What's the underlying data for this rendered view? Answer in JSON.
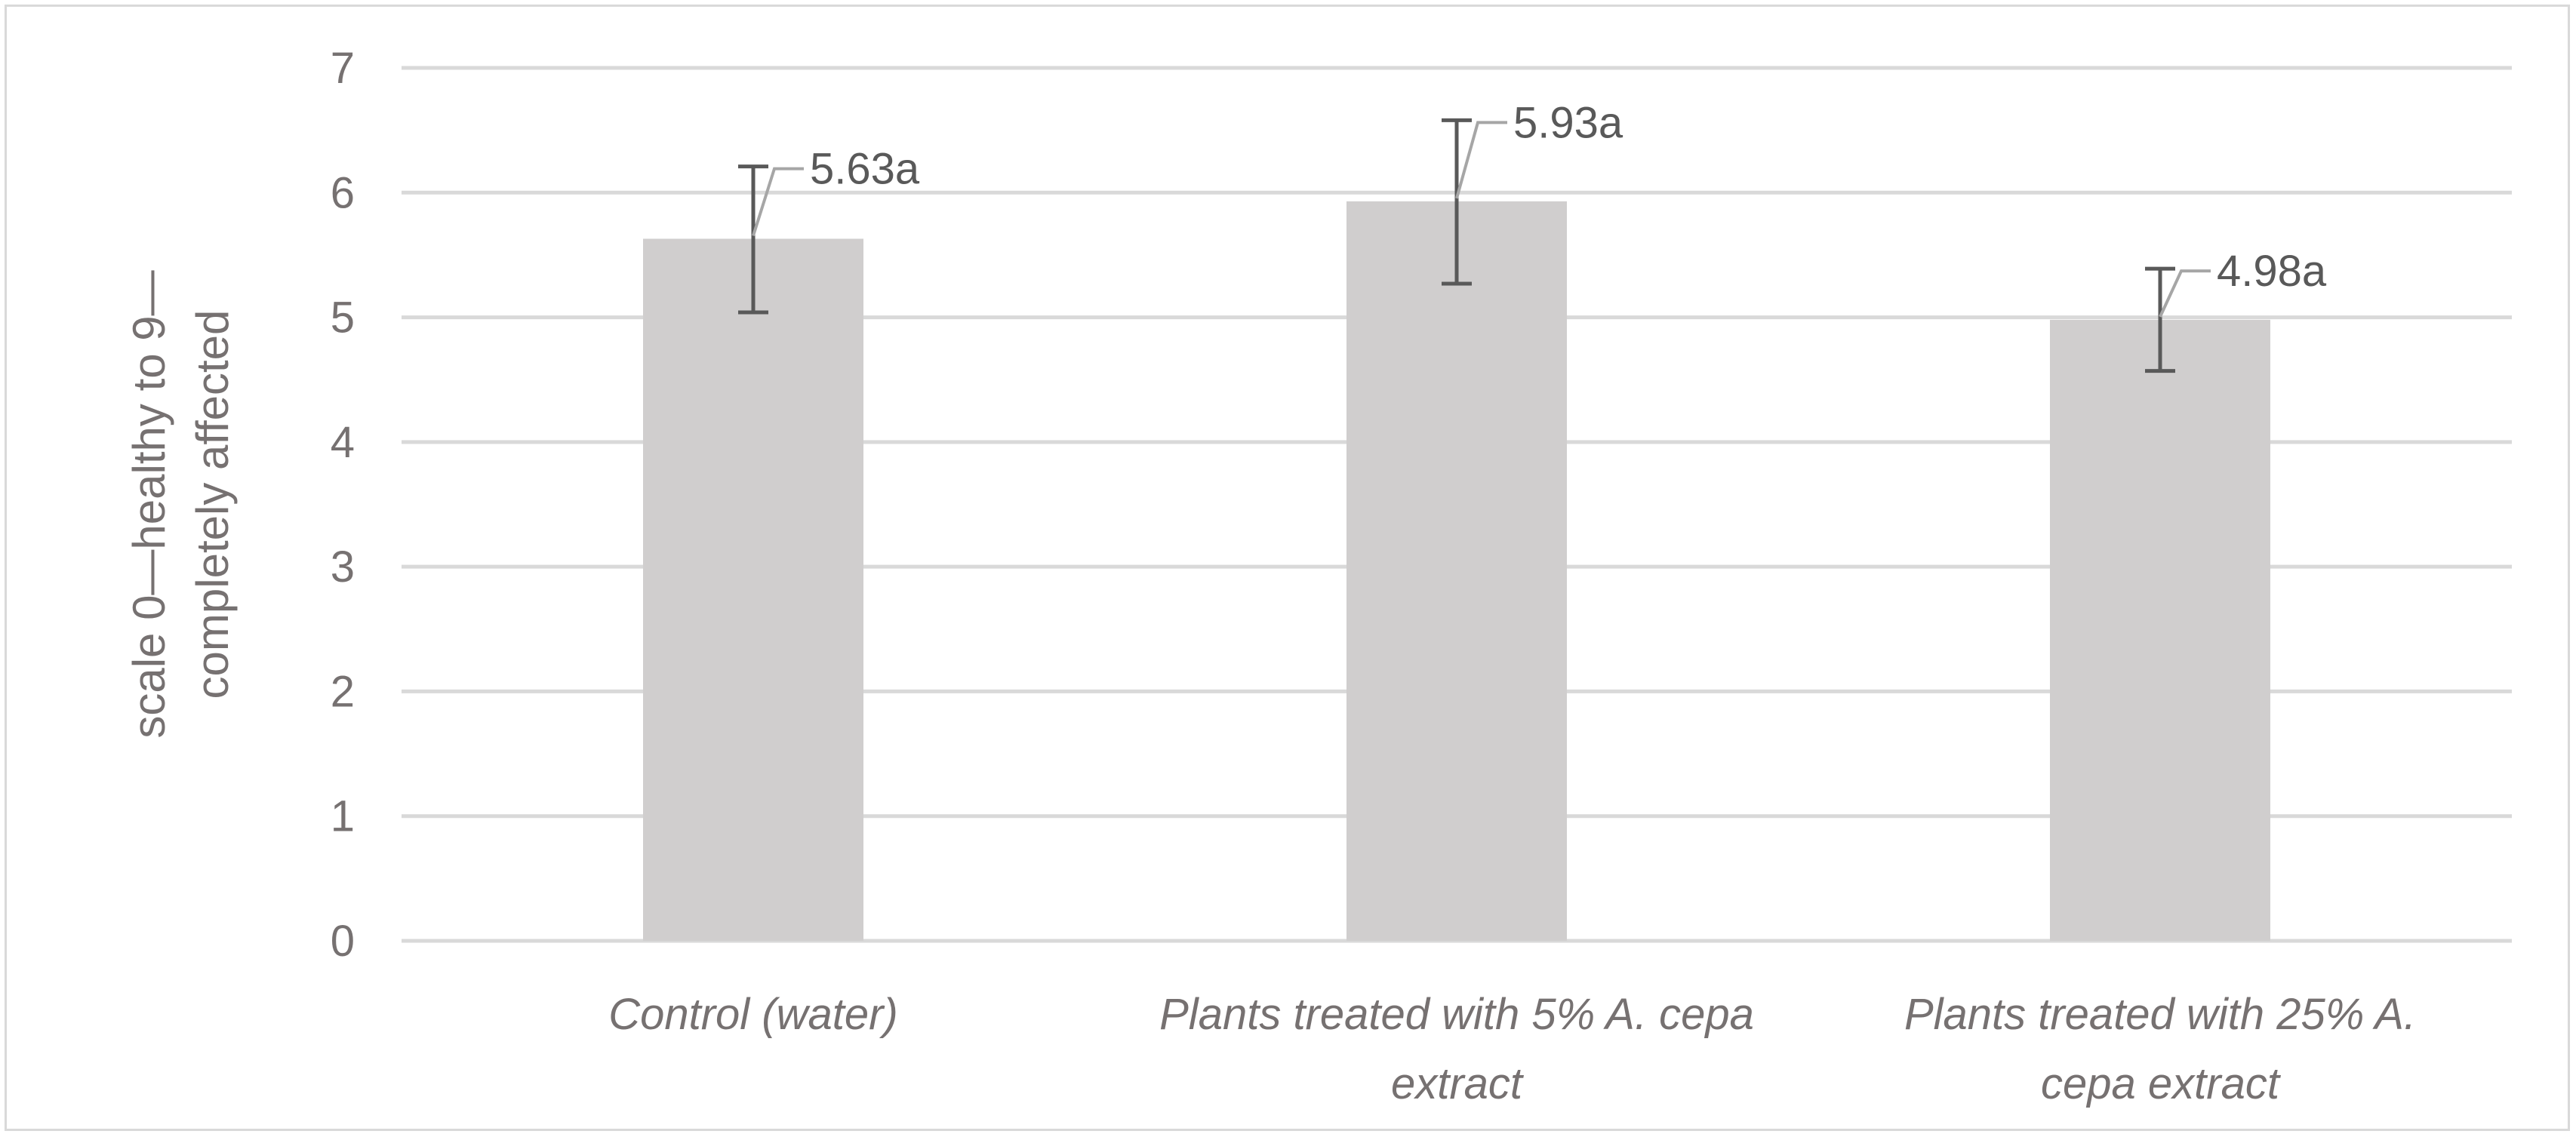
{
  "chart_data": {
    "type": "bar",
    "title": "",
    "xlabel": "",
    "ylabel_lines": [
      "scale 0—healthy to 9—",
      "completely affected"
    ],
    "ylim": [
      0,
      7
    ],
    "yticks": [
      0,
      1,
      2,
      3,
      4,
      5,
      6,
      7
    ],
    "grid": true,
    "categories": [
      [
        "Control (water)"
      ],
      [
        "Plants treated with 5% A. cepa",
        "extract"
      ],
      [
        "Plants treated with 25% A.",
        "cepa extract"
      ]
    ],
    "values": [
      5.63,
      5.93,
      4.98
    ],
    "error_low": [
      5.04,
      5.27,
      4.57
    ],
    "error_high": [
      6.21,
      6.58,
      5.39
    ],
    "data_labels": [
      "5.63a",
      "5.93a",
      "4.98a"
    ],
    "colors": {
      "bar": "#d0cece",
      "grid": "#d9d9d9",
      "error": "#595959",
      "leader": "#a6a6a6"
    }
  }
}
